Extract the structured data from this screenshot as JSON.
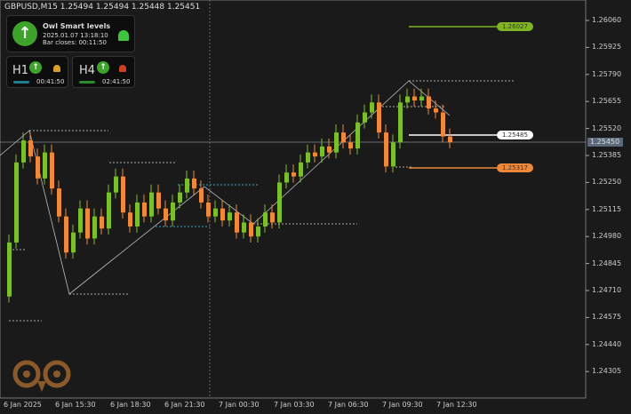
{
  "header": {
    "symbol_line": "GBPUSD,M15  1.25494 1.25494 1.25448 1.25451"
  },
  "indicator": {
    "title": "Owl Smart levels",
    "datetime": "2025.01.07 13:18:10",
    "bar_closes": "Bar closes: 00:11:50",
    "h1": {
      "label": "H1",
      "time": "00:41:50",
      "bar_color": "#1e7f8f",
      "alarm_color": "#d9a030"
    },
    "h4": {
      "label": "H4",
      "time": "02:41:50",
      "bar_color": "#2a8a2a",
      "alarm_color": "#d04020"
    }
  },
  "levels": {
    "green": "1.26027",
    "white": "1.25485",
    "orange": "1.25317",
    "current": "1.25450"
  },
  "price_axis": [
    "1.26060",
    "1.25925",
    "1.25790",
    "1.25655",
    "1.25520",
    "1.25385",
    "1.25250",
    "1.25115",
    "1.24980",
    "1.24845",
    "1.24710",
    "1.24575",
    "1.24440",
    "1.24305"
  ],
  "time_axis": [
    "6 Jan 2025",
    "6 Jan 15:30",
    "6 Jan 18:30",
    "6 Jan 21:30",
    "7 Jan 00:30",
    "7 Jan 03:30",
    "7 Jan 06:30",
    "7 Jan 09:30",
    "7 Jan 12:30"
  ],
  "chart_data": {
    "type": "candlestick",
    "symbol": "GBPUSD",
    "timeframe": "M15",
    "first_open": 1.2468,
    "closes": [
      1.2495,
      1.2535,
      1.2546,
      1.2538,
      1.2527,
      1.254,
      1.2522,
      1.2508,
      1.249,
      1.25,
      1.2512,
      1.2497,
      1.2508,
      1.2502,
      1.252,
      1.2528,
      1.251,
      1.2503,
      1.2515,
      1.2508,
      1.252,
      1.2512,
      1.2506,
      1.2515,
      1.252,
      1.2527,
      1.2522,
      1.2515,
      1.2508,
      1.2512,
      1.2506,
      1.251,
      1.25,
      1.2505,
      1.2498,
      1.2503,
      1.251,
      1.2505,
      1.2525,
      1.253,
      1.2528,
      1.2535,
      1.254,
      1.2538,
      1.2543,
      1.254,
      1.255,
      1.2545,
      1.2542,
      1.2555,
      1.256,
      1.2565,
      1.255,
      1.2533,
      1.2545,
      1.2565,
      1.2568,
      1.2566,
      1.2568,
      1.2562,
      1.256,
      1.2548,
      1.25451
    ],
    "colors": {
      "up": "#7cbd2a",
      "down": "#f0883a"
    }
  }
}
